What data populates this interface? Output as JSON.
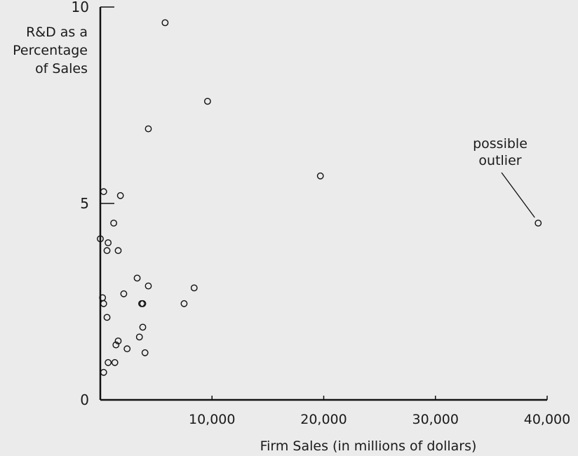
{
  "chart_data": {
    "type": "scatter",
    "xlabel": "Firm Sales (in millions of dollars)",
    "ylabel": [
      "R&D as a",
      "Percentage",
      "of Sales"
    ],
    "xlim": [
      0,
      40000
    ],
    "ylim": [
      0,
      10
    ],
    "x_ticks": [
      10000,
      20000,
      30000,
      40000
    ],
    "x_tick_labels": [
      "10,000",
      "20,000",
      "30,000",
      "40,000"
    ],
    "y_ticks": [
      0,
      5,
      10
    ],
    "y_tick_labels": [
      "0",
      "5",
      "10"
    ],
    "grid": false,
    "annotation": {
      "text": [
        "possible",
        "outlier"
      ],
      "point": {
        "x": 39200,
        "y": 4.5
      }
    },
    "points": [
      {
        "x": 5800,
        "y": 9.6
      },
      {
        "x": 9600,
        "y": 7.6
      },
      {
        "x": 4300,
        "y": 6.9
      },
      {
        "x": 19700,
        "y": 5.7
      },
      {
        "x": 39200,
        "y": 4.5
      },
      {
        "x": 300,
        "y": 5.3
      },
      {
        "x": 1800,
        "y": 5.2
      },
      {
        "x": 1200,
        "y": 4.5
      },
      {
        "x": 0,
        "y": 4.1
      },
      {
        "x": 700,
        "y": 4.0
      },
      {
        "x": 600,
        "y": 3.8
      },
      {
        "x": 1600,
        "y": 3.8
      },
      {
        "x": 3300,
        "y": 3.1
      },
      {
        "x": 4300,
        "y": 2.9
      },
      {
        "x": 8400,
        "y": 2.85
      },
      {
        "x": 2100,
        "y": 2.7
      },
      {
        "x": 200,
        "y": 2.6
      },
      {
        "x": 300,
        "y": 2.45
      },
      {
        "x": 3700,
        "y": 2.45
      },
      {
        "x": 3800,
        "y": 2.45
      },
      {
        "x": 7500,
        "y": 2.45
      },
      {
        "x": 600,
        "y": 2.1
      },
      {
        "x": 3800,
        "y": 1.85
      },
      {
        "x": 3500,
        "y": 1.6
      },
      {
        "x": 1600,
        "y": 1.5
      },
      {
        "x": 1400,
        "y": 1.4
      },
      {
        "x": 2400,
        "y": 1.3
      },
      {
        "x": 4000,
        "y": 1.2
      },
      {
        "x": 700,
        "y": 0.95
      },
      {
        "x": 1300,
        "y": 0.95
      },
      {
        "x": 300,
        "y": 0.7
      }
    ]
  }
}
